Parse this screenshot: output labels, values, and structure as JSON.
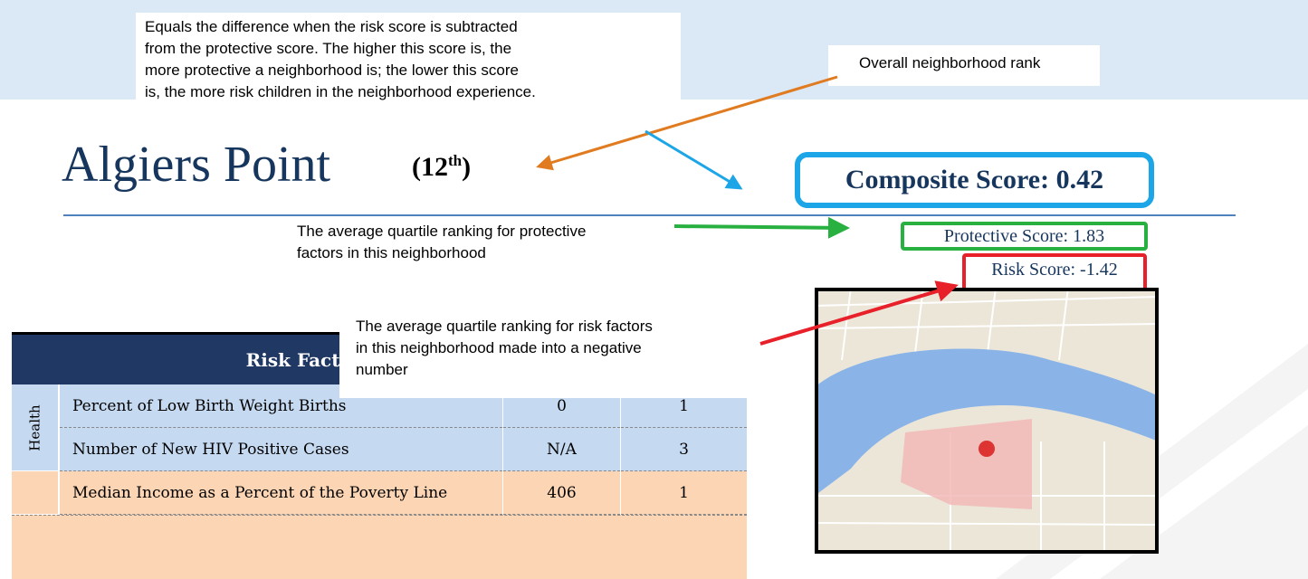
{
  "annotations": [
    {
      "lines": [
        "Equals the difference when the risk score is subtracted",
        "from the protective score.  The higher this score is, the",
        "more protective a neighborhood is; the lower this score",
        "is, the more risk children in the neighborhood experience."
      ]
    },
    {
      "lines": [
        "Overall neighborhood rank"
      ]
    },
    {
      "lines": [
        "The average quartile ranking for protective",
        "factors in this neighborhood"
      ]
    },
    {
      "lines": [
        "The average quartile ranking for risk factors",
        "in this neighborhood made into a negative",
        "number"
      ]
    }
  ],
  "header": {
    "title": "Algiers Point",
    "rank": {
      "open": "(12",
      "suffix": "th",
      "close": ")"
    }
  },
  "scores": {
    "composite": "Composite Score: 0.42",
    "protective": "Protective Score: 1.83",
    "risk": "Risk Score:  -1.42"
  },
  "table": {
    "header": "Risk Factor",
    "groups": [
      {
        "label": "Health",
        "rows": [
          [
            "Percent of Low Birth Weight Births",
            "0",
            "1"
          ],
          [
            "Number of New HIV Positive Cases",
            "N/A",
            "3"
          ]
        ]
      },
      {
        "rows": [
          [
            "Median Income as  a Percent of the Poverty Line",
            "406",
            "1"
          ]
        ]
      }
    ]
  }
}
